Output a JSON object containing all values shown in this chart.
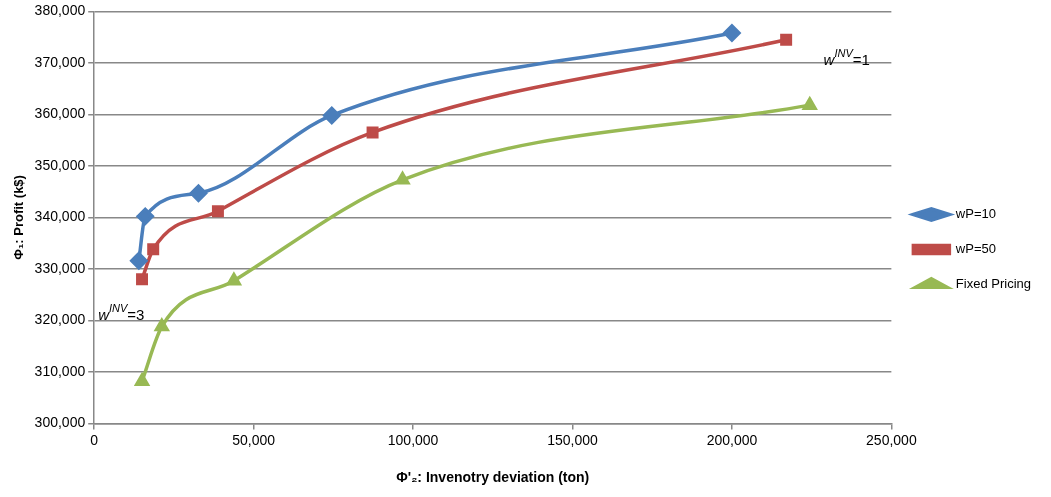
{
  "chart_data": {
    "type": "line",
    "xlabel": "Φ'₂: Invenotry deviation (ton)",
    "ylabel": "Φ₁: Profit (k$)",
    "xlim": [
      0,
      250000
    ],
    "xticks": [
      0,
      {
        "value": 50000,
        "label": "50,000"
      },
      {
        "value": 100000,
        "label": "100,000"
      },
      {
        "value": 150000,
        "label": "150,000"
      },
      {
        "value": 200000,
        "label": "200,000"
      },
      {
        "value": 250000,
        "label": "250,000"
      }
    ],
    "ylim": [
      300000,
      380000
    ],
    "yticks": [
      {
        "value": 300000,
        "label": "300,000"
      },
      {
        "value": 310000,
        "label": "310,000"
      },
      {
        "value": 320000,
        "label": "320,000"
      },
      {
        "value": 330000,
        "label": "330,000"
      },
      {
        "value": 340000,
        "label": "340,000"
      },
      {
        "value": 350000,
        "label": "350,000"
      },
      {
        "value": 360000,
        "label": "360,000"
      },
      {
        "value": 370000,
        "label": "370,000"
      },
      {
        "value": 380000,
        "label": "380,000"
      }
    ],
    "grid": "y",
    "legend": "right",
    "series": [
      {
        "name": "wP=10",
        "color": "#4a7ebb",
        "marker": "diamond",
        "x": [
          14000,
          16000,
          32700,
          74500,
          200000
        ],
        "values": [
          331600,
          340200,
          344700,
          359800,
          375800
        ]
      },
      {
        "name": "wP=50",
        "color": "#be4b48",
        "marker": "square",
        "x": [
          15000,
          18500,
          38800,
          87300,
          217000
        ],
        "values": [
          328000,
          333800,
          341200,
          356500,
          374500
        ]
      },
      {
        "name": "Fixed Pricing",
        "color": "#98b954",
        "marker": "triangle",
        "x": [
          15000,
          21200,
          43800,
          96700,
          224400
        ],
        "values": [
          308200,
          318800,
          327700,
          347300,
          361800
        ]
      }
    ],
    "annotations": [
      "w$^{INV}$=3",
      "w$^{INV}$=1"
    ]
  }
}
